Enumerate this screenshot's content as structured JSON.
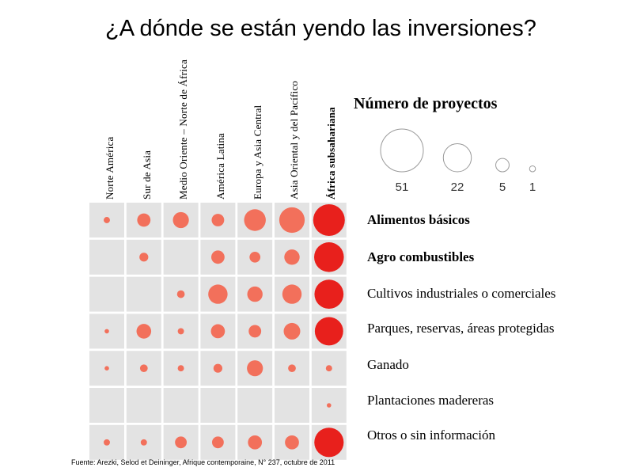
{
  "title": "¿A dónde se están yendo las inversiones?",
  "legend": {
    "title": "Número de proyectos",
    "values": [
      "51",
      "22",
      "5",
      "1"
    ]
  },
  "source": "Fuente: Arezki, Selod et Deininger, Afrique contemporaine, N° 237, octubre de 2011",
  "colors": {
    "cell": "#e3e3e3",
    "bubble_light": "#f2705b",
    "bubble_dark": "#e8201c",
    "legend_stroke": "#9a9a9a"
  },
  "chart_data": {
    "type": "bubble-matrix",
    "title": "¿A dónde se están yendo las inversiones?",
    "size_legend_title": "Número de proyectos",
    "size_legend_values": [
      51,
      22,
      5,
      1
    ],
    "columns": [
      "Norte América",
      "Sur de Asia",
      "Medio Oriente – Norte de África",
      "América Latina",
      "Europa y Asia Central",
      "Asia Oriental y del Pacífico",
      "África subsahariana"
    ],
    "rows": [
      "Alimentos básicos",
      "Agro combustibles",
      "Cultivos industriales o comerciales",
      "Parques, reservas, áreas protegidas",
      "Ganado",
      "Plantaciones madereras",
      "Otros o sin información"
    ],
    "values": [
      [
        2,
        9,
        13,
        8,
        24,
        33,
        51
      ],
      [
        null,
        4,
        null,
        9,
        6,
        12,
        45
      ],
      [
        null,
        null,
        3,
        19,
        12,
        19,
        43
      ],
      [
        1,
        11,
        2,
        10,
        8,
        14,
        41
      ],
      [
        1,
        3,
        2,
        4,
        13,
        3,
        2
      ],
      [
        null,
        null,
        null,
        null,
        null,
        null,
        1
      ],
      [
        2,
        2,
        7,
        7,
        10,
        10,
        44
      ]
    ],
    "source": "Fuente: Arezki, Selod et Deininger, Afrique contemporaine, N° 237, octubre de 2011"
  }
}
